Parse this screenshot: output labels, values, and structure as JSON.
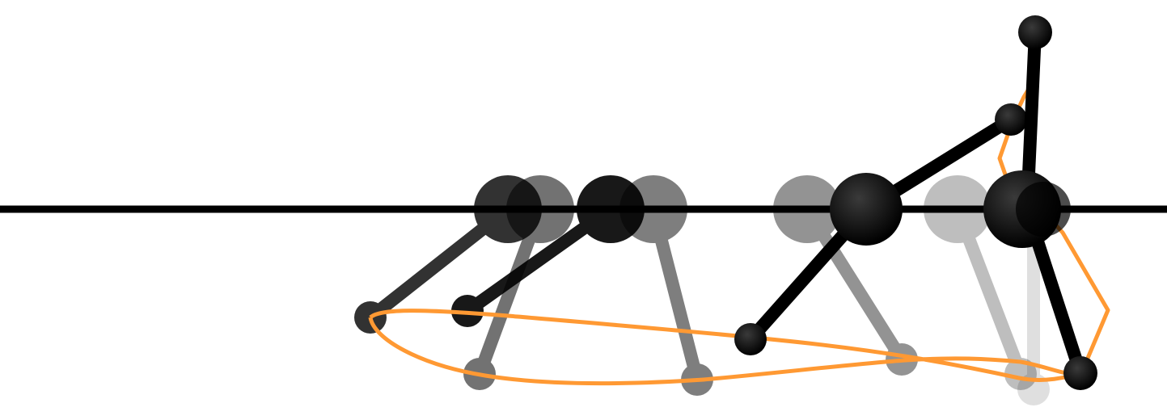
{
  "figure": {
    "description_free": true,
    "ground_color": "#000000",
    "trajectory_color": "#FF9933",
    "link_color": "#000000",
    "joint_color": "#000000",
    "frame_count": 8,
    "frame_opacity_levels": [
      0.75,
      0.55,
      0.85,
      0.5,
      0.45,
      1.0,
      0.25,
      1.0
    ]
  }
}
